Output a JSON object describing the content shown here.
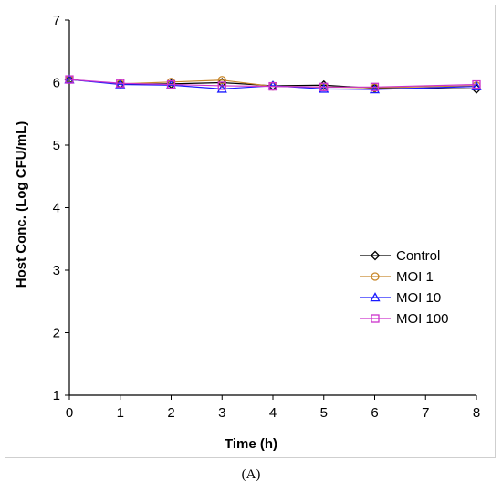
{
  "panel_label": "(A)",
  "chart_data": {
    "type": "line",
    "title": "",
    "xlabel": "Time (h)",
    "ylabel": "Host Conc. (Log CFU/mL)",
    "xlim": [
      0,
      8
    ],
    "ylim": [
      1,
      7
    ],
    "x_ticks": [
      0,
      1,
      2,
      3,
      4,
      5,
      6,
      7,
      8
    ],
    "y_ticks": [
      1,
      2,
      3,
      4,
      5,
      6,
      7
    ],
    "grid": false,
    "legend_position": "right",
    "x": [
      0,
      1,
      2,
      3,
      4,
      5,
      6,
      8
    ],
    "series": [
      {
        "name": "Control",
        "marker": "diamond",
        "color": "#000000",
        "values": [
          6.05,
          5.98,
          5.98,
          6.0,
          5.95,
          5.96,
          5.91,
          5.9
        ]
      },
      {
        "name": "MOI 1",
        "marker": "circle",
        "color": "#c8872a",
        "values": [
          6.05,
          5.98,
          6.01,
          6.04,
          5.94,
          5.93,
          5.92,
          5.95
        ]
      },
      {
        "name": "MOI 10",
        "marker": "triangle",
        "color": "#1a1aff",
        "values": [
          6.05,
          5.97,
          5.96,
          5.9,
          5.95,
          5.9,
          5.89,
          5.94
        ]
      },
      {
        "name": "MOI 100",
        "marker": "square",
        "color": "#cc33cc",
        "values": [
          6.05,
          5.99,
          5.97,
          5.95,
          5.94,
          5.93,
          5.93,
          5.97
        ]
      }
    ]
  }
}
